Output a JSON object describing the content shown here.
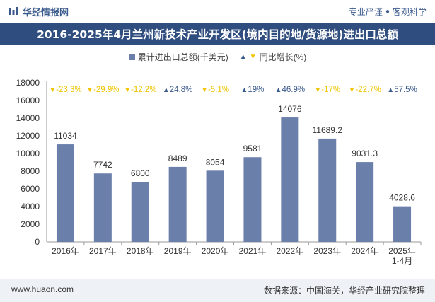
{
  "header": {
    "brand": "华经情报网",
    "slogan_left": "专业严谨",
    "slogan_right": "客观科学"
  },
  "title": "2016-2025年4月兰州新技术产业开发区(境内目的地/货源地)进出口总额",
  "legend": {
    "bar_label": "累计进出口总额(千美元)",
    "yoy_label": "同比增长(%)"
  },
  "footer": {
    "site": "www.huaon.com",
    "source": "数据来源：中国海关，华经产业研究院整理"
  },
  "colors": {
    "bar": "#6a7faa",
    "up": "#3a5a8c",
    "down": "#f0c400",
    "title_bg": "#2f4d7e"
  },
  "chart_data": {
    "type": "bar",
    "categories": [
      "2016年",
      "2017年",
      "2018年",
      "2019年",
      "2020年",
      "2021年",
      "2022年",
      "2023年",
      "2024年",
      "2025年\n1-4月"
    ],
    "values": [
      11034,
      7742,
      6800,
      8489,
      8054,
      9581,
      14076,
      11689.2,
      9031.3,
      4028.6
    ],
    "value_labels": [
      "11034",
      "7742",
      "6800",
      "8489",
      "8054",
      "9581",
      "14076",
      "11689.2",
      "9031.3",
      "4028.6"
    ],
    "yoy": [
      {
        "dir": "down",
        "text": "-23.3%"
      },
      {
        "dir": "down",
        "text": "-29.9%"
      },
      {
        "dir": "down",
        "text": "-12.2%"
      },
      {
        "dir": "up",
        "text": "24.8%"
      },
      {
        "dir": "down",
        "text": "-5.1%"
      },
      {
        "dir": "up",
        "text": "19%"
      },
      {
        "dir": "up",
        "text": "46.9%"
      },
      {
        "dir": "down",
        "text": "-17%"
      },
      {
        "dir": "down",
        "text": "-22.7%"
      },
      {
        "dir": "up",
        "text": "57.5%"
      }
    ],
    "ylim": [
      0,
      18000
    ],
    "yticks": [
      "0",
      "2000",
      "4000",
      "6000",
      "8000",
      "10000",
      "12000",
      "14000",
      "16000",
      "18000"
    ]
  }
}
